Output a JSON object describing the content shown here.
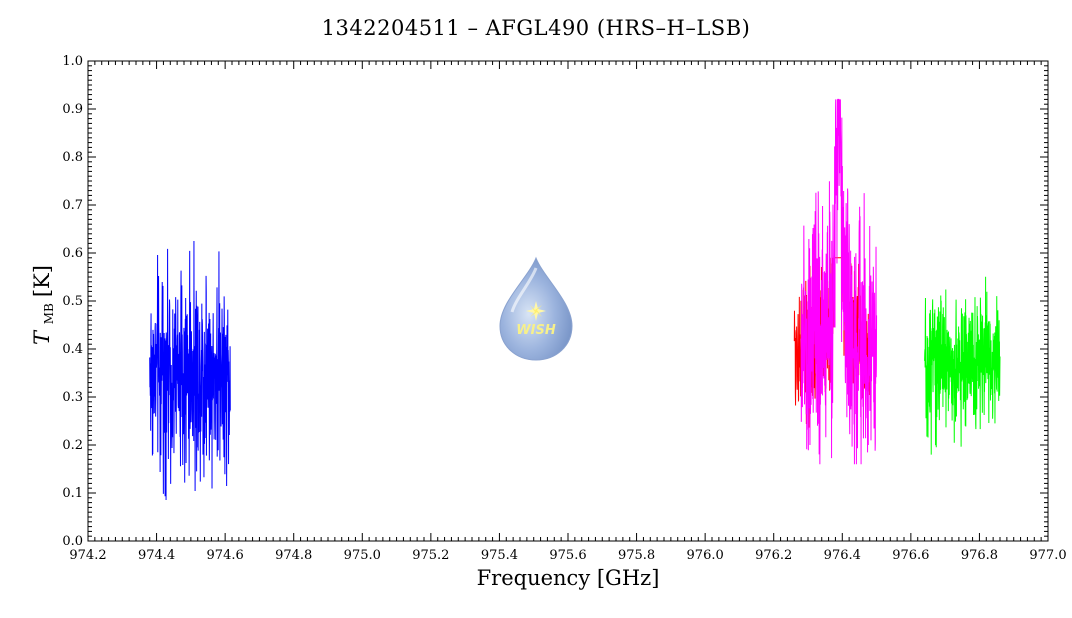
{
  "chart_data": {
    "type": "line",
    "title": "1342204511 – AFGL490 (HRS–H–LSB)",
    "xlabel": "Frequency [GHz]",
    "ylabel": {
      "symbol": "T",
      "subscript": "MB",
      "unit": "[K]"
    },
    "xlim": [
      974.2,
      977.0
    ],
    "ylim": [
      0.0,
      1.0
    ],
    "xticks": [
      "974.2",
      "974.4",
      "974.6",
      "974.8",
      "975.0",
      "975.2",
      "975.4",
      "975.6",
      "975.8",
      "976.0",
      "976.2",
      "976.4",
      "976.6",
      "976.8",
      "977.0"
    ],
    "yticks": [
      "0.0",
      "0.1",
      "0.2",
      "0.3",
      "0.4",
      "0.5",
      "0.6",
      "0.7",
      "0.8",
      "0.9",
      "1.0"
    ],
    "grid": false,
    "series": [
      {
        "color": "#0000ff",
        "x_range": [
          974.38,
          974.615
        ],
        "baseline": 0.35,
        "noise_range": [
          0.05,
          0.625
        ]
      },
      {
        "color": "#ff0000",
        "x_range": [
          976.26,
          976.48
        ],
        "baseline": 0.4,
        "noise_range": [
          0.2,
          0.59
        ],
        "peak": {
          "x": 976.39,
          "y": 0.91
        }
      },
      {
        "color": "#ff00ff",
        "x_range": [
          976.28,
          976.5
        ],
        "baseline": 0.4,
        "noise_range": [
          0.16,
          0.92
        ],
        "peak": {
          "x": 976.39,
          "y": 0.92
        }
      },
      {
        "color": "#00ff00",
        "x_range": [
          976.64,
          976.86
        ],
        "baseline": 0.37,
        "noise_range": [
          0.18,
          0.575
        ]
      }
    ]
  },
  "logo": {
    "text": "WISH",
    "icon": "water-drop-star-icon"
  }
}
